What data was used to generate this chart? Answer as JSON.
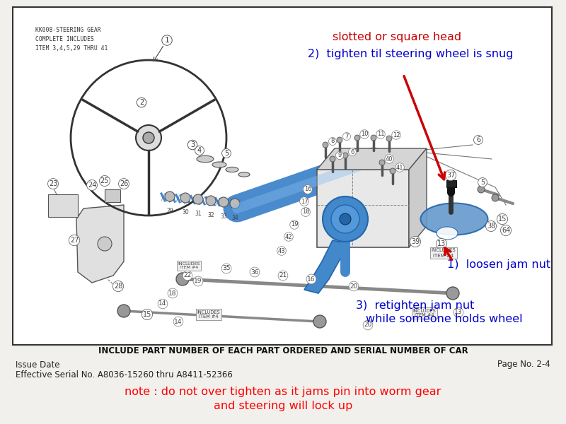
{
  "bg_color": "#f2f0ec",
  "border_color": "#222222",
  "white_bg": "#ffffff",
  "title_text": "KK008-STEERING GEAR\nCOMPLETE INCLUDES\nITEM 3,4,5,29 THRU 41",
  "bottom_label": "INCLUDE PART NUMBER OF EACH PART ORDERED AND SERIAL NUMBER OF CAR",
  "footer_left1": "Issue Date",
  "footer_left2": "Effective Serial No. A8036-15260 thru A8411-52366",
  "footer_right": "Page No. 2-4",
  "note1": "note : do not over tighten as it jams pin into worm gear",
  "note2": "and steering will lock up",
  "note_color": "#ff0000",
  "ann1a": "slotted or square head",
  "ann1b": "2)  tighten til steering wheel is snug",
  "ann1_color": "#cc0000",
  "ann2": "1)  loosen jam nut",
  "ann2_color": "#0000cc",
  "ann3a": "3)  retighten jam nut",
  "ann3b": "     while someone holds wheel",
  "ann3_color": "#0000cc",
  "blue": "#4488cc",
  "blue_dark": "#2266aa",
  "blue_mid": "#5599dd",
  "gray_line": "#666666",
  "gray_part": "#999999",
  "gray_dark": "#444444",
  "part_outline": "#555555"
}
